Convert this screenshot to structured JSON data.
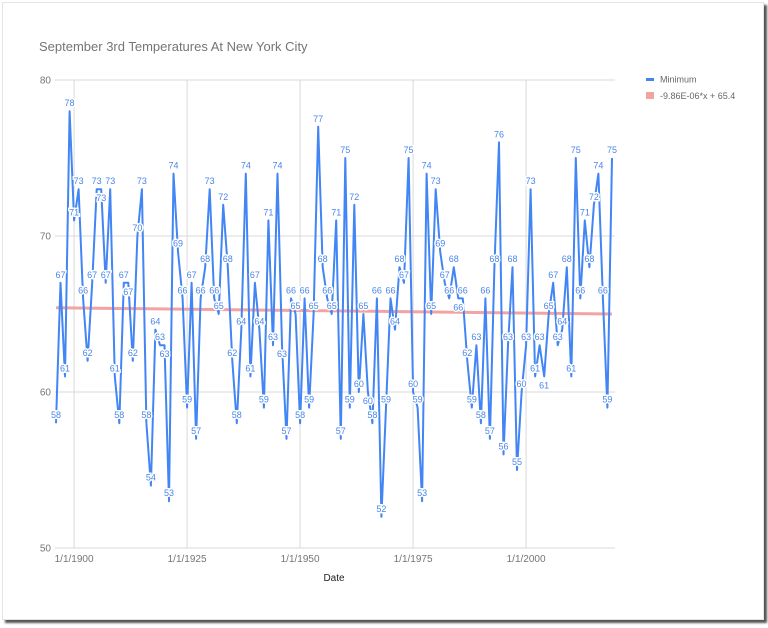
{
  "chart_data": {
    "type": "line",
    "title": "September 3rd Temperatures At New York City",
    "xlabel": "Date",
    "ylabel": "",
    "ylim": [
      50,
      80
    ],
    "yticks": [
      50,
      60,
      70,
      80
    ],
    "xticks": [
      {
        "year": 1900,
        "label": "1/1/1900"
      },
      {
        "year": 1925,
        "label": "1/1/1925"
      },
      {
        "year": 1950,
        "label": "1/1/1950"
      },
      {
        "year": 1975,
        "label": "1/1/1975"
      },
      {
        "year": 2000,
        "label": "1/1/2000"
      }
    ],
    "grid": true,
    "legend_position": "right",
    "data_labels": true,
    "series": [
      {
        "name": "Minimum",
        "color": "#4285f4",
        "x_start_year": 1896,
        "values": [
          58,
          67,
          61,
          78,
          71,
          73,
          66,
          62,
          67,
          73,
          73,
          67,
          73,
          61,
          58,
          67,
          67,
          62,
          70,
          73,
          58,
          54,
          64,
          63,
          63,
          53,
          74,
          69,
          66,
          59,
          67,
          57,
          66,
          68,
          73,
          66,
          65,
          72,
          68,
          62,
          58,
          64,
          74,
          61,
          67,
          64,
          59,
          71,
          63,
          74,
          63,
          57,
          66,
          65,
          58,
          66,
          59,
          65,
          77,
          68,
          66,
          65,
          71,
          57,
          75,
          59,
          72,
          60,
          65,
          60,
          58,
          66,
          52,
          59,
          66,
          64,
          68,
          67,
          75,
          60,
          59,
          53,
          74,
          65,
          73,
          69,
          67,
          66,
          68,
          66,
          66,
          62,
          59,
          63,
          58,
          66,
          57,
          68,
          76,
          56,
          63,
          68,
          55,
          60,
          63,
          73,
          61,
          63,
          61,
          65,
          67,
          63,
          64,
          68,
          61,
          75,
          66,
          71,
          68,
          72,
          74,
          66,
          59,
          75
        ]
      }
    ],
    "trendline": {
      "name": "-9.86E-06*x + 65.4",
      "color": "#f4a3a3",
      "start_value": 65.4,
      "end_value": 65.0
    }
  }
}
